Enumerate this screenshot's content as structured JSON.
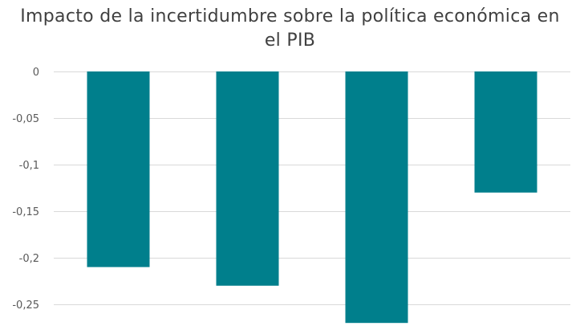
{
  "chart_data": {
    "type": "bar",
    "title_lines": [
      "Impacto de la incertidumbre sobre la política económica en",
      "el PIB"
    ],
    "categories": [
      "",
      "",
      "",
      ""
    ],
    "series": [
      {
        "values": [
          -0.21,
          -0.23,
          -0.27,
          -0.13
        ],
        "color": "#007f8c"
      }
    ],
    "yticks": [
      0,
      -0.05,
      -0.1,
      -0.15,
      -0.2,
      -0.25
    ],
    "ytick_labels": [
      "0",
      "-0,05",
      "-0,1",
      "-0,15",
      "-0,2",
      "-0,25"
    ],
    "ylim": [
      -0.27,
      0
    ],
    "xlabel": "",
    "ylabel": "",
    "grid": true,
    "legend": "none"
  }
}
